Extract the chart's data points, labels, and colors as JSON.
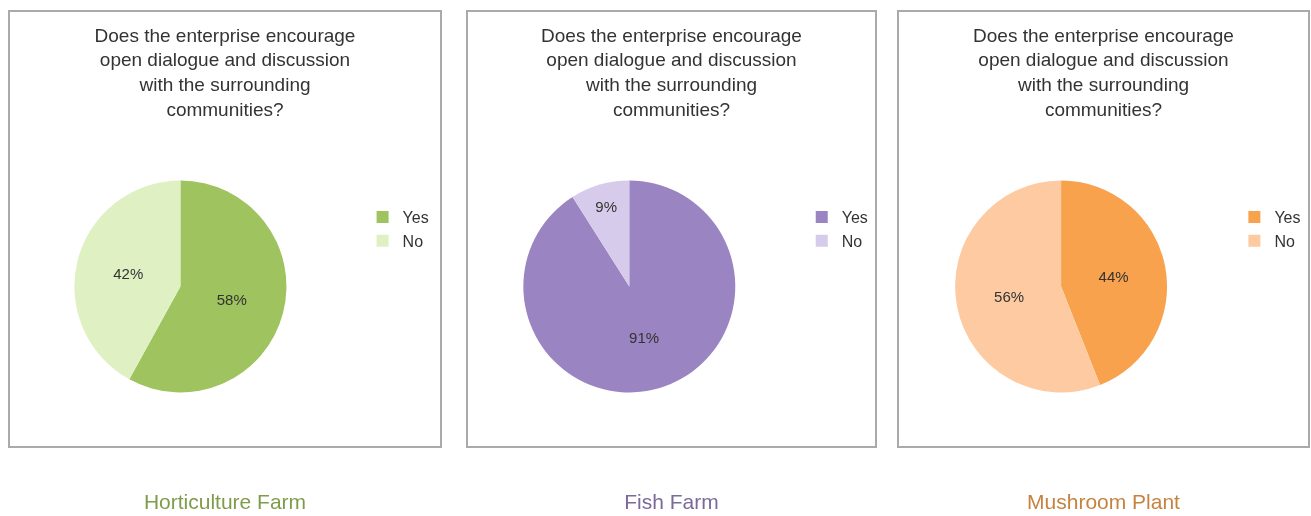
{
  "chart_data": [
    {
      "type": "pie",
      "title": "Does the enterprise encourage open dialogue and discussion with the surrounding communities?",
      "annotations": [
        "Horticulture Farm"
      ],
      "categories": [
        "Yes",
        "No"
      ],
      "values": [
        58,
        42
      ],
      "value_labels": [
        "58%",
        "42%"
      ],
      "colors": [
        "#9fc35e",
        "#dff1c2"
      ],
      "legend": "right"
    },
    {
      "type": "pie",
      "title": "Does the enterprise encourage open dialogue and discussion with the surrounding communities?",
      "annotations": [
        "Fish Farm"
      ],
      "categories": [
        "Yes",
        "No"
      ],
      "values": [
        91,
        9
      ],
      "value_labels": [
        "91%",
        "9%"
      ],
      "colors": [
        "#9a84c1",
        "#d6cbea"
      ],
      "legend": "right"
    },
    {
      "type": "pie",
      "title": "Does the enterprise encourage open dialogue and discussion with the surrounding communities?",
      "annotations": [
        "Mushroom Plant"
      ],
      "categories": [
        "Yes",
        "No"
      ],
      "values": [
        44,
        56
      ],
      "value_labels": [
        "44%",
        "56%"
      ],
      "colors": [
        "#f8a24e",
        "#fdcaa2"
      ],
      "legend": "right"
    }
  ]
}
